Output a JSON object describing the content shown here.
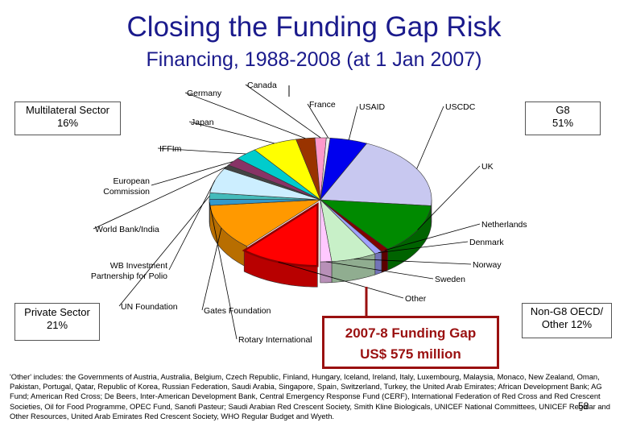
{
  "title": "Closing the Funding Gap Risk",
  "subtitle": "Financing, 1988-2008 (at 1 Jan 2007)",
  "group_labels": {
    "multilateral": {
      "name": "Multilateral Sector",
      "pct": "16%"
    },
    "g8": {
      "name": "G8",
      "pct": "51%"
    },
    "private": {
      "name": "Private Sector",
      "pct": "21%"
    },
    "non_g8": {
      "name": "Non-G8 OECD/",
      "name2": "Other 12%"
    }
  },
  "gap": {
    "line1": "2007-8 Funding Gap",
    "line2": "US$ 575 million"
  },
  "footnote": "'Other' includes: the Governments of Austria, Australia, Belgium, Czech Republic, Finland, Hungary, Iceland, Ireland, Italy, Luxembourg, Malaysia, Monaco, New Zealand, Oman, Pakistan, Portugal, Qatar, Republic of Korea, Russian Federation, Saudi Arabia, Singapore, Spain, Switzerland, Turkey, the United Arab Emirates; African Development Bank; AG Fund; American Red Cross; De Beers, Inter-American Development Bank, Central Emergency Response Fund (CERF), International Federation of Red Cross and Red Crescent Societies, Oil for Food Programme, OPEC Fund, Sanofi Pasteur; Saudi Arabian Red Crescent Society, Smith Kline Biologicals, UNICEF National Committees, UNICEF Regular and Other Resources, United Arab Emirates Red Crescent Society, WHO Regular Budget and Wyeth.",
  "page_number": "58",
  "chart_data": {
    "type": "pie",
    "title": "Closing the Funding Gap Risk",
    "subtitle": "Financing, 1988-2008 (at 1 Jan 2007)",
    "slices": [
      {
        "label": "USAID",
        "value": 5,
        "color": "#0000ee"
      },
      {
        "label": "USCDC",
        "value": 18,
        "color": "#c8c8f0"
      },
      {
        "label": "UK",
        "value": 12,
        "color": "#008a00"
      },
      {
        "label": "Netherlands",
        "value": 1,
        "color": "#800000"
      },
      {
        "label": "Denmark",
        "value": 1,
        "color": "#a0a0ff"
      },
      {
        "label": "Norway",
        "value": 6,
        "color": "#c8f0c8"
      },
      {
        "label": "Sweden",
        "value": 1.5,
        "color": "#ffc8ff"
      },
      {
        "label": "Other",
        "value": 10.5,
        "color": "#ff0000"
      },
      {
        "label": "Gates Foundation",
        "value": 11,
        "color": "#ff9900"
      },
      {
        "label": "Rotary International",
        "value": 1.5,
        "color": "#3399cc"
      },
      {
        "label": "UN Foundation",
        "value": 1.5,
        "color": "#44bbbb"
      },
      {
        "label": "WB Investment Partnership for Polio",
        "value": 6,
        "color": "#cceeff"
      },
      {
        "label": "World Bank/India",
        "value": 1,
        "color": "#444444"
      },
      {
        "label": "European Commission",
        "value": 2,
        "color": "#883366"
      },
      {
        "label": "IFFIm",
        "value": 3,
        "color": "#00cccc"
      },
      {
        "label": "Japan",
        "value": 6,
        "color": "#ffff00"
      },
      {
        "label": "Germany",
        "value": 2.5,
        "color": "#993300"
      },
      {
        "label": "Canada",
        "value": 1.5,
        "color": "#ff99cc"
      },
      {
        "label": "France",
        "value": 0.5,
        "color": "#eeeeee"
      }
    ],
    "groups": [
      {
        "name": "G8",
        "pct": 51
      },
      {
        "name": "Multilateral Sector",
        "pct": 16
      },
      {
        "name": "Private Sector",
        "pct": 21
      },
      {
        "name": "Non-G8 OECD/Other",
        "pct": 12
      }
    ],
    "legend": "none",
    "annotation": "2007-8 Funding Gap US$ 575 million"
  }
}
